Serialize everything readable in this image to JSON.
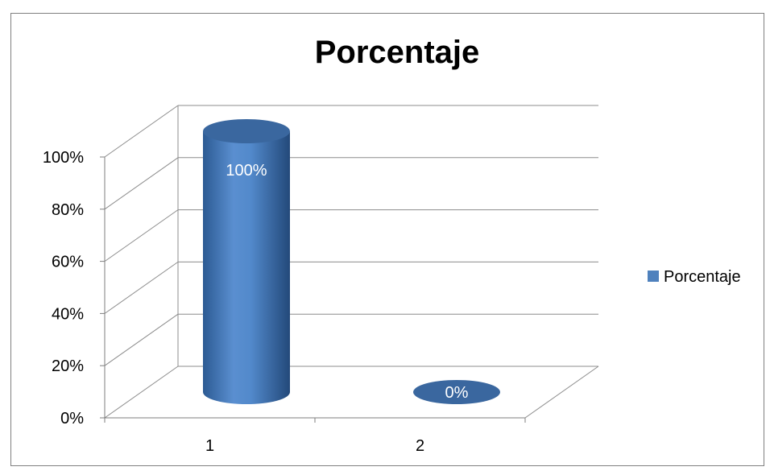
{
  "chart_data": {
    "type": "bar",
    "style": "3d-cylinder",
    "title": "Porcentaje",
    "categories": [
      "1",
      "2"
    ],
    "series": [
      {
        "name": "Porcentaje",
        "values": [
          1.0,
          0.0
        ],
        "data_labels": [
          "100%",
          "0%"
        ]
      }
    ],
    "yticks": [
      "0%",
      "20%",
      "40%",
      "60%",
      "80%",
      "100%"
    ],
    "ylim": [
      0,
      1
    ],
    "grid": true,
    "legend": "right"
  },
  "colors": {
    "bar": "#4f81bd",
    "bar_dark": "#2e5a8c",
    "bar_top": "#3a679f",
    "grid": "#8c8c8c",
    "frame": "#7f7f7f"
  }
}
